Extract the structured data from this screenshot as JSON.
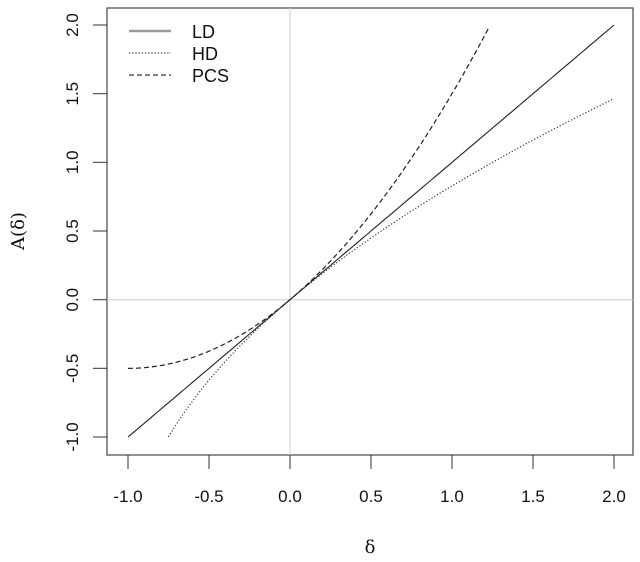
{
  "chart_data": {
    "type": "line",
    "title": "",
    "xlabel": "δ",
    "ylabel": "A(δ)",
    "xlim": [
      -1.0,
      2.0
    ],
    "ylim": [
      -1.0,
      2.0
    ],
    "x_ticks": [
      "-1.0",
      "-0.5",
      "0.0",
      "0.5",
      "1.0",
      "1.5",
      "2.0"
    ],
    "y_ticks": [
      "-1.0",
      "-0.5",
      "0.0",
      "0.5",
      "1.0",
      "1.5",
      "2.0"
    ],
    "grid": false,
    "reference_lines": {
      "x": 0.0,
      "y": 0.0,
      "color": "#cccccc"
    },
    "legend": {
      "position": "top-left",
      "entries": [
        "LD",
        "HD",
        "PCS"
      ]
    },
    "series": [
      {
        "name": "LD",
        "style": "solid",
        "x": [
          -1.0,
          -0.5,
          0.0,
          0.5,
          1.0,
          1.5,
          2.0
        ],
        "values": [
          -1.0,
          -0.5,
          0.0,
          0.5,
          1.0,
          1.5,
          2.0
        ]
      },
      {
        "name": "HD",
        "style": "dotted",
        "x": [
          -0.75,
          -0.5,
          -0.25,
          0.0,
          0.25,
          0.5,
          0.75,
          1.0,
          1.25,
          1.5,
          1.75,
          2.0
        ],
        "values": [
          -1.0,
          -0.59,
          -0.27,
          0.0,
          0.24,
          0.45,
          0.65,
          0.83,
          1.0,
          1.16,
          1.32,
          1.46
        ]
      },
      {
        "name": "PCS",
        "style": "dashed",
        "x": [
          -1.0,
          -0.75,
          -0.5,
          -0.25,
          0.0,
          0.25,
          0.5,
          0.75,
          1.0,
          1.23
        ],
        "values": [
          -0.5,
          -0.47,
          -0.38,
          -0.22,
          0.0,
          0.28,
          0.63,
          1.03,
          1.5,
          1.99
        ]
      }
    ]
  },
  "axes": {
    "xlabel": "δ",
    "ylabel": "A(δ)",
    "x_ticks": [
      "-1.0",
      "-0.5",
      "0.0",
      "0.5",
      "1.0",
      "1.5",
      "2.0"
    ],
    "y_ticks": [
      "-1.0",
      "-0.5",
      "0.0",
      "0.5",
      "1.0",
      "1.5",
      "2.0"
    ]
  },
  "legend": {
    "items": [
      {
        "label": "LD"
      },
      {
        "label": "HD"
      },
      {
        "label": "PCS"
      }
    ]
  }
}
